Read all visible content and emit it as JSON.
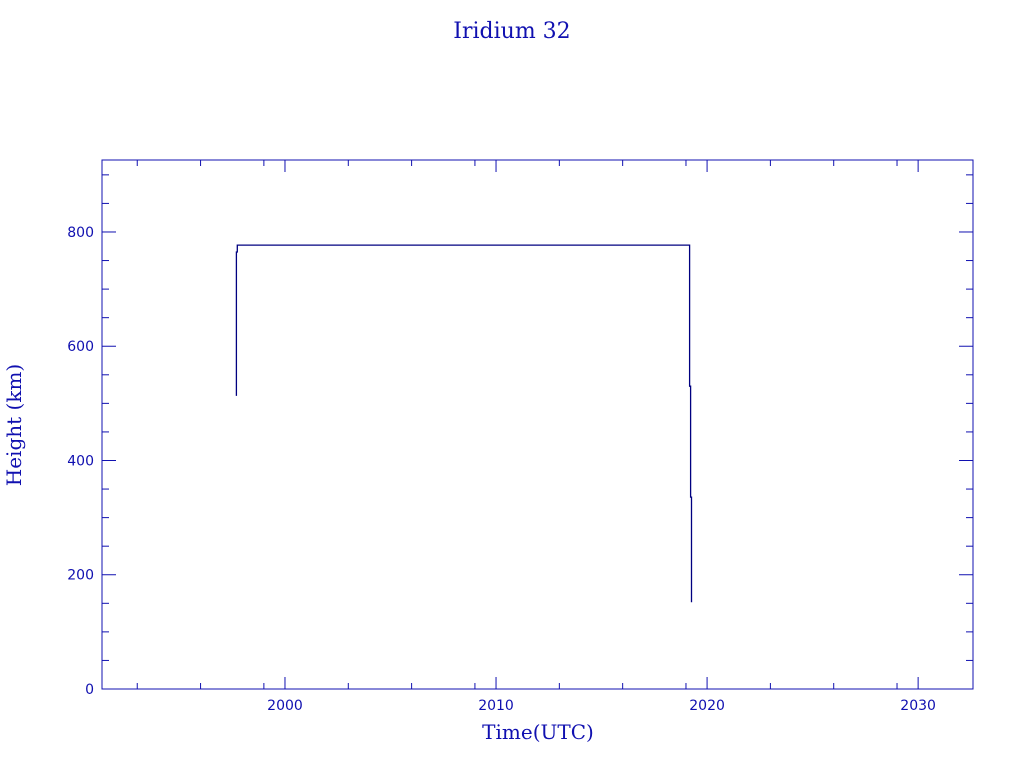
{
  "chart_data": {
    "type": "line",
    "title": "Iridium 32",
    "xlabel": "Time(UTC)",
    "ylabel": "Height (km)",
    "xlim": [
      1991.33,
      2032.6
    ],
    "ylim": [
      0,
      926
    ],
    "x_ticks": [
      2000,
      2010,
      2020,
      2030
    ],
    "x_tick_labels": [
      "2000",
      "2010",
      "2020",
      "2030"
    ],
    "x_minor_ticks": [
      1993,
      1996,
      1999,
      2003,
      2006,
      2009,
      2013,
      2016,
      2019,
      2023,
      2026,
      2029
    ],
    "y_ticks": [
      0,
      200,
      400,
      600,
      800
    ],
    "y_tick_labels": [
      "0",
      "200",
      "400",
      "600",
      "800"
    ],
    "y_minor_step": 50,
    "grid": false,
    "colors": {
      "line": "#000080",
      "axes": "#1010b0"
    },
    "series": [
      {
        "x": [
          1997.7,
          1997.7,
          1997.74,
          1997.74,
          2019.17,
          2019.17,
          2019.22,
          2019.22,
          2019.26,
          2019.26
        ],
        "y": [
          513,
          765,
          765,
          777,
          777,
          530,
          530,
          336,
          336,
          152
        ]
      }
    ]
  }
}
